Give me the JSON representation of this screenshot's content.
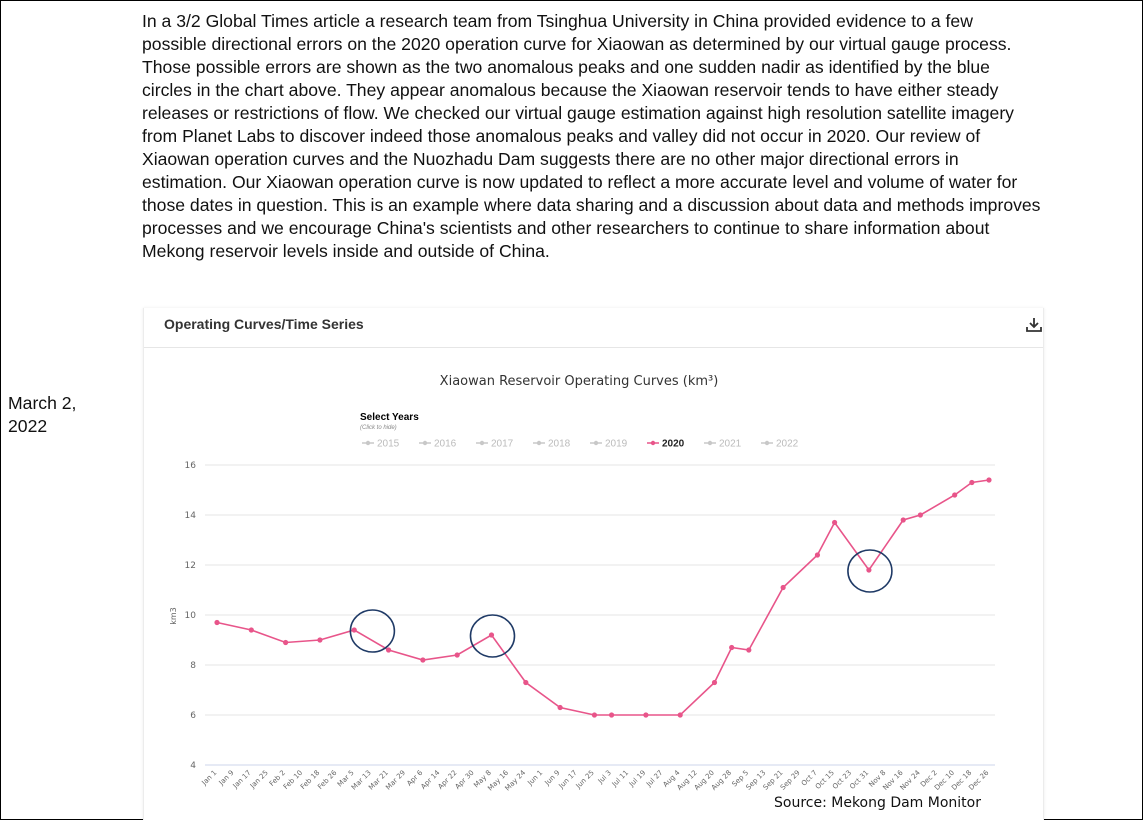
{
  "article": {
    "paragraph": "In a 3/2 Global Times article a research team from Tsinghua University in China provided evidence to a few possible directional errors on the 2020 operation curve for Xiaowan as determined by our virtual gauge process. Those possible errors are shown as the two anomalous peaks and one sudden nadir as identified by the blue circles in the chart above. They appear anomalous because the Xiaowan reservoir tends to have either steady releases or restrictions of flow. We checked our virtual gauge estimation against high resolution satellite imagery from Planet Labs to discover indeed those anomalous peaks and valley did not occur in 2020. Our review of Xiaowan operation curves and the Nuozhadu Dam suggests there are no other major directional errors in estimation. Our Xiaowan operation curve is now updated to reflect a more accurate level and volume of water for those dates in question. This is an example where data sharing and a discussion about data and methods improves processes and we encourage China's scientists and other researchers to continue to share information about Mekong reservoir levels inside and outside of China."
  },
  "date_label": "March 2, 2022",
  "panel": {
    "title": "Operating Curves/Time Series",
    "download_icon": "download-icon"
  },
  "source_text": "Source: Mekong Dam Monitor",
  "colors": {
    "series": "#e8558a",
    "circle": "#1f3a66",
    "inactive": "#c8c8c8",
    "grid": "#e6e6e6",
    "axis_baseline": "#ccd6eb"
  },
  "chart_data": {
    "type": "line",
    "title": "Xiaowan Reservoir Operating Curves (km³)",
    "ylabel": "km3",
    "xlabel": "",
    "ylim": [
      4,
      16
    ],
    "y_ticks": [
      4,
      6,
      8,
      10,
      12,
      14,
      16
    ],
    "grid": true,
    "legend": {
      "heading": "Select Years",
      "subheading": "(Click to hide)",
      "placement": "top",
      "items": [
        "2015",
        "2016",
        "2017",
        "2018",
        "2019",
        "2020",
        "2021",
        "2022"
      ],
      "active": "2020"
    },
    "categories": [
      "Jan 1",
      "Jan 9",
      "Jan 17",
      "Jan 25",
      "Feb 2",
      "Feb 10",
      "Feb 18",
      "Feb 26",
      "Mar 5",
      "Mar 13",
      "Mar 21",
      "Mar 29",
      "Apr 6",
      "Apr 14",
      "Apr 22",
      "Apr 30",
      "May 8",
      "May 16",
      "May 24",
      "Jun 1",
      "Jun 9",
      "Jun 17",
      "Jun 25",
      "Jul 3",
      "Jul 11",
      "Jul 19",
      "Jul 27",
      "Aug 4",
      "Aug 12",
      "Aug 20",
      "Aug 28",
      "Sep 5",
      "Sep 13",
      "Sep 21",
      "Sep 29",
      "Oct 7",
      "Oct 15",
      "Oct 23",
      "Oct 31",
      "Nov 8",
      "Nov 16",
      "Nov 24",
      "Dec 2",
      "Dec 10",
      "Dec 18",
      "Dec 26"
    ],
    "series": [
      {
        "name": "2020",
        "x": [
          0,
          2,
          4,
          6,
          8,
          10,
          12,
          14,
          16,
          18,
          20,
          22,
          23,
          25,
          27,
          29,
          30,
          31,
          33,
          35,
          36,
          38,
          40,
          41,
          43,
          44,
          45
        ],
        "values": [
          9.7,
          9.4,
          8.9,
          9.0,
          9.4,
          8.6,
          8.2,
          8.4,
          9.2,
          7.3,
          6.3,
          6.0,
          6.0,
          6.0,
          6.0,
          7.3,
          8.7,
          8.6,
          11.1,
          12.4,
          13.7,
          11.8,
          13.8,
          14.0,
          14.8,
          15.3,
          15.4
        ]
      }
    ],
    "annotations": [
      {
        "label": "anomalous-peak",
        "x": 9,
        "y": 9.4
      },
      {
        "label": "anomalous-peak",
        "x": 16,
        "y": 9.2
      },
      {
        "label": "sudden-nadir",
        "x": 38,
        "y": 11.8
      }
    ]
  }
}
